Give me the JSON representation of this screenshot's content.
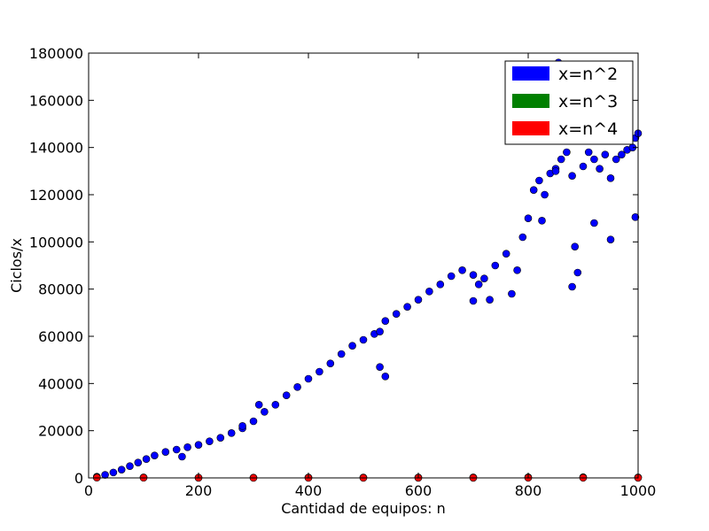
{
  "chart_data": {
    "type": "scatter",
    "xlabel": "Cantidad de equipos: n",
    "ylabel": "Ciclos/x",
    "xlim": [
      0,
      1000
    ],
    "ylim": [
      0,
      180000
    ],
    "x_ticks": [
      0,
      200,
      400,
      600,
      800,
      1000
    ],
    "y_ticks": [
      0,
      20000,
      40000,
      60000,
      80000,
      100000,
      120000,
      140000,
      160000,
      180000
    ],
    "grid": false,
    "legend_position": "top-right",
    "series": [
      {
        "name": "x=n^2",
        "color": "#0000ff",
        "x": [
          15,
          30,
          45,
          60,
          75,
          90,
          105,
          120,
          140,
          160,
          180,
          200,
          220,
          240,
          260,
          280,
          300,
          320,
          340,
          360,
          380,
          400,
          420,
          440,
          460,
          480,
          500,
          520,
          530,
          540,
          560,
          580,
          600,
          620,
          640,
          660,
          680,
          700,
          710,
          720,
          740,
          760,
          780,
          790,
          800,
          810,
          820,
          830,
          840,
          850,
          855,
          860,
          870,
          880,
          885,
          890,
          900,
          910,
          920,
          930,
          940,
          950,
          960,
          970,
          980,
          990,
          995,
          1000,
          170,
          280,
          310,
          530,
          540,
          700,
          730,
          770,
          825,
          850,
          880,
          920,
          950,
          995
        ],
        "values": [
          500,
          1300,
          2300,
          3500,
          5000,
          6500,
          8000,
          9500,
          11000,
          12000,
          13000,
          14000,
          15500,
          17000,
          19000,
          21000,
          24000,
          28000,
          31000,
          35000,
          38500,
          42000,
          45000,
          48500,
          52500,
          56000,
          58500,
          61000,
          62000,
          66500,
          69500,
          72500,
          75500,
          79000,
          82000,
          85500,
          88000,
          86000,
          82000,
          84500,
          90000,
          95000,
          88000,
          102000,
          110000,
          122000,
          126000,
          120000,
          129000,
          131000,
          176000,
          135000,
          138000,
          128000,
          98000,
          87000,
          132000,
          138000,
          135000,
          131000,
          137000,
          127000,
          135000,
          137000,
          139000,
          140000,
          144000,
          146000,
          9000,
          22000,
          31000,
          47000,
          43000,
          75000,
          75500,
          78000,
          109000,
          130000,
          81000,
          108000,
          101000,
          110500
        ]
      },
      {
        "name": "x=n^3",
        "color": "#008000",
        "x": [
          15,
          100,
          200,
          300,
          400,
          500,
          600,
          700,
          800,
          900,
          1000
        ],
        "values": [
          300,
          200,
          100,
          100,
          150,
          150,
          150,
          200,
          250,
          300,
          200
        ]
      },
      {
        "name": "x=n^4",
        "color": "#ff0000",
        "x": [
          15,
          100,
          200,
          300,
          400,
          500,
          600,
          700,
          800,
          900,
          1000
        ],
        "values": [
          100,
          50,
          30,
          20,
          20,
          20,
          25,
          30,
          40,
          40,
          30
        ]
      }
    ]
  }
}
